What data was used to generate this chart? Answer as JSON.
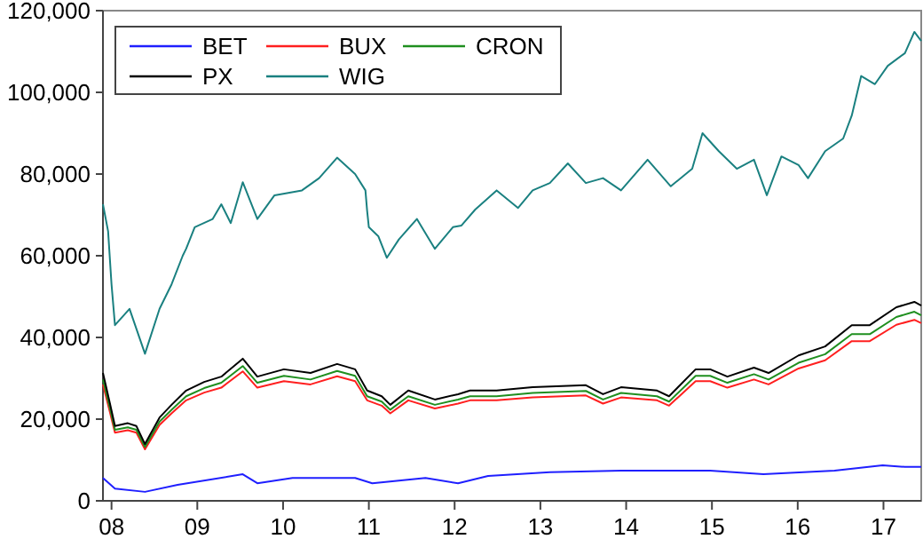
{
  "chart_data": {
    "type": "line",
    "xlim": [
      2007.9,
      2017.44
    ],
    "xticks": [
      {
        "value": 2008,
        "label": "08"
      },
      {
        "value": 2009,
        "label": "09"
      },
      {
        "value": 2010,
        "label": "10"
      },
      {
        "value": 2011,
        "label": "11"
      },
      {
        "value": 2012,
        "label": "12"
      },
      {
        "value": 2013,
        "label": "13"
      },
      {
        "value": 2014,
        "label": "14"
      },
      {
        "value": 2015,
        "label": "15"
      },
      {
        "value": 2016,
        "label": "16"
      },
      {
        "value": 2017,
        "label": "17"
      }
    ],
    "ylim": [
      0,
      120000
    ],
    "yticks": [
      {
        "value": 0,
        "label": "0"
      },
      {
        "value": 20000,
        "label": "20,000"
      },
      {
        "value": 40000,
        "label": "40,000"
      },
      {
        "value": 60000,
        "label": "60,000"
      },
      {
        "value": 80000,
        "label": "80,000"
      },
      {
        "value": 100000,
        "label": "100,000"
      },
      {
        "value": 120000,
        "label": "120,000"
      }
    ],
    "legend": "top left",
    "grid": false,
    "series": [
      {
        "name": "BET",
        "color": "#1f1fff",
        "x": [
          2007.9,
          2008.04,
          2008.39,
          2008.77,
          2009.53,
          2009.7,
          2010.11,
          2010.84,
          2011.04,
          2011.66,
          2012.04,
          2012.39,
          2013.11,
          2013.94,
          2014.98,
          2015.6,
          2016.43,
          2016.99,
          2017.25,
          2017.44
        ],
        "values": [
          5600,
          3000,
          2200,
          3900,
          6500,
          4300,
          5600,
          5600,
          4300,
          5600,
          4300,
          6100,
          7000,
          7400,
          7400,
          6500,
          7400,
          8700,
          8300,
          8300
        ]
      },
      {
        "name": "BUX",
        "color": "#ff1f1f",
        "x": [
          2007.9,
          2007.98,
          2008.04,
          2008.19,
          2008.29,
          2008.39,
          2008.56,
          2008.7,
          2008.87,
          2009.08,
          2009.28,
          2009.53,
          2009.7,
          2010.01,
          2010.32,
          2010.63,
          2010.84,
          2010.98,
          2011.15,
          2011.25,
          2011.46,
          2011.77,
          2012.04,
          2012.18,
          2012.49,
          2012.91,
          2013.53,
          2013.73,
          2013.94,
          2014.36,
          2014.5,
          2014.81,
          2014.98,
          2015.18,
          2015.49,
          2015.66,
          2016.01,
          2016.32,
          2016.63,
          2016.84,
          2017.15,
          2017.36,
          2017.44
        ],
        "values": [
          28500,
          21800,
          16700,
          17300,
          16700,
          12600,
          18600,
          21400,
          24600,
          26500,
          27700,
          31700,
          27700,
          29300,
          28500,
          30500,
          29300,
          24600,
          23300,
          21400,
          24600,
          22600,
          23800,
          24600,
          24600,
          25300,
          25800,
          23800,
          25300,
          24600,
          23300,
          29300,
          29300,
          27700,
          29700,
          28500,
          32400,
          34400,
          39100,
          39100,
          43100,
          44300,
          43500
        ]
      },
      {
        "name": "CRON",
        "color": "#1f8f1f",
        "x": [
          2007.9,
          2007.98,
          2008.04,
          2008.19,
          2008.29,
          2008.39,
          2008.56,
          2008.7,
          2008.87,
          2009.08,
          2009.28,
          2009.53,
          2009.7,
          2010.01,
          2010.32,
          2010.63,
          2010.84,
          2010.98,
          2011.15,
          2011.25,
          2011.46,
          2011.77,
          2012.04,
          2012.18,
          2012.49,
          2012.91,
          2013.53,
          2013.73,
          2013.94,
          2014.36,
          2014.5,
          2014.81,
          2014.98,
          2015.18,
          2015.49,
          2015.66,
          2016.01,
          2016.32,
          2016.63,
          2016.84,
          2017.15,
          2017.36,
          2017.44
        ],
        "values": [
          29700,
          22800,
          17400,
          18000,
          17400,
          13200,
          19400,
          22300,
          25600,
          27600,
          28900,
          33000,
          28900,
          30600,
          29700,
          31800,
          30600,
          25600,
          24300,
          22300,
          25600,
          23500,
          24800,
          25600,
          25600,
          26400,
          26900,
          24800,
          26400,
          25600,
          24300,
          30600,
          30600,
          28900,
          31000,
          29700,
          33800,
          35900,
          40800,
          40800,
          45000,
          46300,
          45400
        ]
      },
      {
        "name": "PX",
        "color": "#000000",
        "x": [
          2007.9,
          2007.98,
          2008.04,
          2008.19,
          2008.29,
          2008.39,
          2008.56,
          2008.7,
          2008.87,
          2009.08,
          2009.28,
          2009.53,
          2009.7,
          2010.01,
          2010.32,
          2010.63,
          2010.84,
          2010.98,
          2011.15,
          2011.25,
          2011.46,
          2011.77,
          2012.04,
          2012.18,
          2012.49,
          2012.91,
          2013.53,
          2013.73,
          2013.94,
          2014.36,
          2014.5,
          2014.81,
          2014.98,
          2015.18,
          2015.49,
          2015.66,
          2016.01,
          2016.32,
          2016.63,
          2016.84,
          2017.15,
          2017.36,
          2017.44
        ],
        "values": [
          31300,
          24000,
          18300,
          19000,
          18300,
          13900,
          20400,
          23500,
          27000,
          29100,
          30400,
          34800,
          30400,
          32200,
          31300,
          33500,
          32200,
          27000,
          25600,
          23500,
          27000,
          24800,
          26100,
          27000,
          27000,
          27800,
          28300,
          26100,
          27800,
          27000,
          25600,
          32200,
          32200,
          30400,
          32600,
          31300,
          35600,
          37800,
          43000,
          43000,
          47400,
          48700,
          47800
        ]
      },
      {
        "name": "WIG",
        "color": "#1a8080",
        "x": [
          2007.9,
          2007.96,
          2008.0,
          2008.04,
          2008.21,
          2008.39,
          2008.56,
          2008.7,
          2008.83,
          2008.87,
          2008.97,
          2009.18,
          2009.28,
          2009.39,
          2009.53,
          2009.7,
          2009.9,
          2010.22,
          2010.42,
          2010.63,
          2010.84,
          2010.96,
          2010.98,
          2011.0,
          2011.11,
          2011.21,
          2011.35,
          2011.56,
          2011.77,
          2011.98,
          2012.08,
          2012.24,
          2012.49,
          2012.74,
          2012.91,
          2013.11,
          2013.32,
          2013.53,
          2013.73,
          2013.94,
          2014.25,
          2014.52,
          2014.77,
          2014.89,
          2015.08,
          2015.29,
          2015.49,
          2015.64,
          2015.81,
          2016.01,
          2016.12,
          2016.32,
          2016.53,
          2016.63,
          2016.74,
          2016.9,
          2017.05,
          2017.25,
          2017.36,
          2017.44
        ],
        "values": [
          72600,
          66000,
          53000,
          43000,
          47000,
          36000,
          47000,
          53000,
          60000,
          61700,
          67000,
          69000,
          72600,
          68000,
          78000,
          69000,
          74800,
          76000,
          79000,
          84000,
          80000,
          76000,
          71000,
          67000,
          64800,
          59500,
          64000,
          69000,
          61700,
          67000,
          67400,
          71300,
          76000,
          71700,
          76000,
          77800,
          82600,
          77800,
          79000,
          76000,
          83500,
          77000,
          81300,
          90000,
          85600,
          81300,
          83500,
          74800,
          84300,
          82200,
          79000,
          85600,
          88700,
          94300,
          104000,
          102000,
          106500,
          109600,
          114800,
          112600
        ]
      }
    ]
  }
}
